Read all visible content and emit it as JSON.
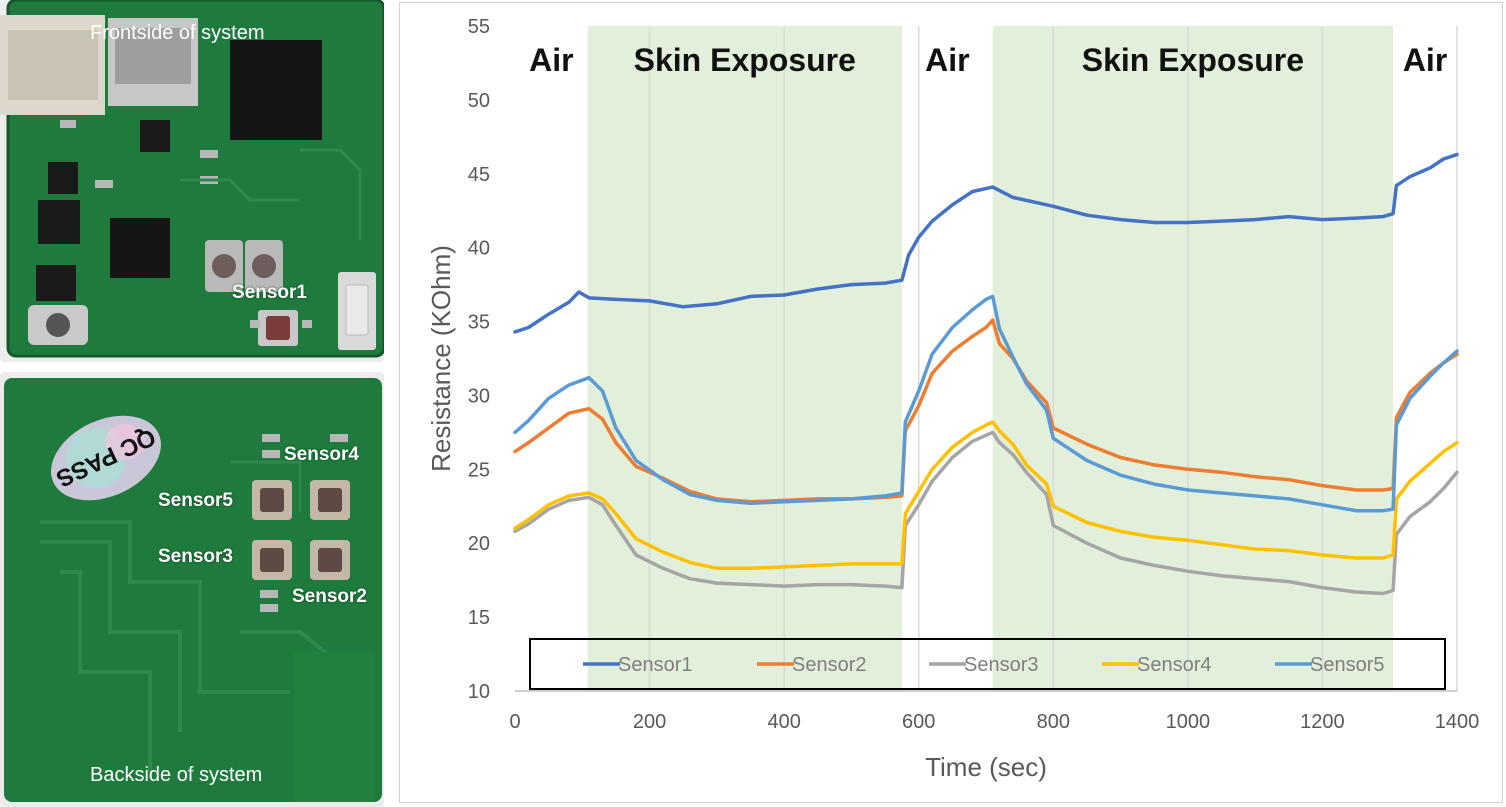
{
  "photos": {
    "front_caption": "Frontside of system",
    "back_caption": "Backside of system",
    "sensor_labels": {
      "sensor1": "Sensor1",
      "sensor2": "Sensor2",
      "sensor3": "Sensor3",
      "sensor4": "Sensor4",
      "sensor5": "Sensor5"
    },
    "qc_sticker": "QC PASS"
  },
  "chart_data": {
    "type": "line",
    "xlabel": "Time (sec)",
    "ylabel": "Resistance (KOhm)",
    "xlim": [
      0,
      1400
    ],
    "ylim": [
      10,
      55
    ],
    "xticks": [
      0,
      200,
      400,
      600,
      800,
      1000,
      1200,
      1400
    ],
    "yticks": [
      10,
      15,
      20,
      25,
      30,
      35,
      40,
      45,
      50,
      55
    ],
    "grid": "vertical",
    "legend_position": "bottom-inside",
    "regions": [
      {
        "label": "Air",
        "start": 0,
        "end": 108,
        "shaded": false
      },
      {
        "label": "Skin Exposure",
        "start": 108,
        "end": 575,
        "shaded": true
      },
      {
        "label": "Air",
        "start": 575,
        "end": 710,
        "shaded": false
      },
      {
        "label": "Skin Exposure",
        "start": 710,
        "end": 1305,
        "shaded": true
      },
      {
        "label": "Air",
        "start": 1305,
        "end": 1400,
        "shaded": false
      }
    ],
    "region_color": "#e2efda",
    "series": [
      {
        "name": "Sensor1",
        "color": "#4472c4",
        "x": [
          0,
          20,
          50,
          80,
          95,
          110,
          150,
          200,
          250,
          300,
          350,
          400,
          450,
          500,
          550,
          575,
          585,
          600,
          620,
          650,
          680,
          700,
          710,
          740,
          800,
          850,
          900,
          950,
          1000,
          1050,
          1100,
          1150,
          1200,
          1250,
          1290,
          1305,
          1310,
          1330,
          1360,
          1380,
          1400
        ],
        "y": [
          34.3,
          34.6,
          35.5,
          36.3,
          37.0,
          36.6,
          36.5,
          36.4,
          36.0,
          36.2,
          36.7,
          36.8,
          37.2,
          37.5,
          37.6,
          37.8,
          39.5,
          40.7,
          41.8,
          42.9,
          43.8,
          44.0,
          44.1,
          43.4,
          42.8,
          42.2,
          41.9,
          41.7,
          41.7,
          41.8,
          41.9,
          42.1,
          41.9,
          42.0,
          42.1,
          42.3,
          44.2,
          44.8,
          45.4,
          46.0,
          46.3
        ]
      },
      {
        "name": "Sensor2",
        "color": "#ed7d31",
        "x": [
          0,
          20,
          50,
          80,
          110,
          130,
          150,
          180,
          220,
          260,
          300,
          350,
          400,
          450,
          500,
          550,
          575,
          580,
          600,
          620,
          650,
          680,
          700,
          710,
          720,
          740,
          760,
          790,
          800,
          850,
          900,
          950,
          1000,
          1050,
          1100,
          1150,
          1200,
          1250,
          1290,
          1305,
          1310,
          1330,
          1360,
          1380,
          1400
        ],
        "y": [
          26.2,
          26.8,
          27.8,
          28.8,
          29.1,
          28.4,
          26.8,
          25.2,
          24.4,
          23.5,
          23.0,
          22.8,
          22.9,
          23.0,
          23.0,
          23.1,
          23.2,
          27.6,
          29.3,
          31.5,
          33.0,
          34.0,
          34.6,
          35.1,
          33.5,
          32.5,
          31.0,
          29.5,
          27.8,
          26.7,
          25.8,
          25.3,
          25.0,
          24.8,
          24.5,
          24.3,
          23.9,
          23.6,
          23.6,
          23.7,
          28.5,
          30.2,
          31.5,
          32.2,
          32.8
        ]
      },
      {
        "name": "Sensor3",
        "color": "#a5a5a5",
        "x": [
          0,
          20,
          50,
          80,
          110,
          130,
          150,
          180,
          220,
          260,
          300,
          350,
          400,
          450,
          500,
          550,
          575,
          580,
          600,
          620,
          650,
          680,
          700,
          710,
          720,
          740,
          760,
          790,
          800,
          850,
          900,
          950,
          1000,
          1050,
          1100,
          1150,
          1200,
          1250,
          1290,
          1305,
          1310,
          1330,
          1360,
          1380,
          1400
        ],
        "y": [
          20.8,
          21.3,
          22.3,
          22.9,
          23.1,
          22.6,
          21.2,
          19.2,
          18.3,
          17.6,
          17.3,
          17.2,
          17.1,
          17.2,
          17.2,
          17.1,
          17.0,
          21.2,
          22.6,
          24.2,
          25.8,
          26.9,
          27.3,
          27.5,
          26.8,
          26.0,
          24.8,
          23.3,
          21.2,
          20.0,
          19.0,
          18.5,
          18.1,
          17.8,
          17.6,
          17.4,
          17.0,
          16.7,
          16.6,
          16.8,
          20.6,
          21.8,
          22.8,
          23.7,
          24.8
        ]
      },
      {
        "name": "Sensor4",
        "color": "#ffc000",
        "x": [
          0,
          20,
          50,
          80,
          110,
          130,
          150,
          180,
          220,
          260,
          300,
          350,
          400,
          450,
          500,
          550,
          575,
          580,
          600,
          620,
          650,
          680,
          700,
          710,
          720,
          740,
          760,
          790,
          800,
          850,
          900,
          950,
          1000,
          1050,
          1100,
          1150,
          1200,
          1250,
          1290,
          1305,
          1310,
          1330,
          1360,
          1380,
          1400
        ],
        "y": [
          21.0,
          21.6,
          22.6,
          23.2,
          23.4,
          23.0,
          22.0,
          20.3,
          19.4,
          18.7,
          18.3,
          18.3,
          18.4,
          18.5,
          18.6,
          18.6,
          18.6,
          22.0,
          23.5,
          25.0,
          26.5,
          27.5,
          28.0,
          28.2,
          27.6,
          26.7,
          25.3,
          24.0,
          22.5,
          21.4,
          20.8,
          20.4,
          20.2,
          19.9,
          19.6,
          19.5,
          19.2,
          19.0,
          19.0,
          19.2,
          23.0,
          24.2,
          25.4,
          26.2,
          26.8
        ]
      },
      {
        "name": "Sensor5",
        "color": "#5b9bd5",
        "x": [
          0,
          20,
          50,
          80,
          110,
          130,
          150,
          180,
          220,
          260,
          300,
          350,
          400,
          450,
          500,
          550,
          575,
          580,
          600,
          620,
          650,
          680,
          700,
          710,
          720,
          740,
          760,
          790,
          800,
          850,
          900,
          950,
          1000,
          1050,
          1100,
          1150,
          1200,
          1250,
          1290,
          1305,
          1310,
          1330,
          1360,
          1380,
          1400
        ],
        "y": [
          27.5,
          28.3,
          29.8,
          30.7,
          31.2,
          30.3,
          27.8,
          25.6,
          24.3,
          23.3,
          22.9,
          22.7,
          22.8,
          22.9,
          23.0,
          23.2,
          23.4,
          28.2,
          30.3,
          32.8,
          34.6,
          35.8,
          36.5,
          36.7,
          34.5,
          32.6,
          30.8,
          29.0,
          27.1,
          25.6,
          24.6,
          24.0,
          23.6,
          23.4,
          23.2,
          23.0,
          22.6,
          22.2,
          22.2,
          22.3,
          28.0,
          29.8,
          31.3,
          32.2,
          33.0
        ]
      }
    ]
  }
}
